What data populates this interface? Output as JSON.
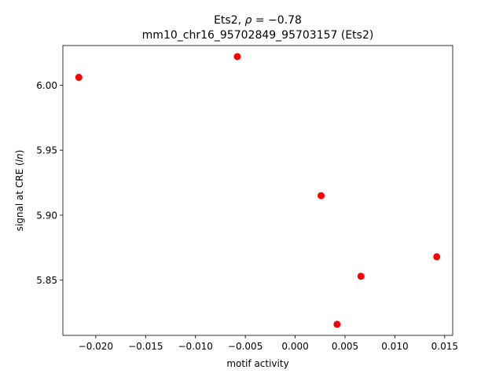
{
  "chart_data": {
    "type": "scatter",
    "title_line1_text": "Ets2, ",
    "title_line1_symbol": "ρ",
    "title_line1_value": " = −0.78",
    "title_line2": "mm10_chr16_95702849_95703157 (Ets2)",
    "xlabel": "motif activity",
    "ylabel_prefix": "signal at CRE (",
    "ylabel_symbol": "ln",
    "ylabel_suffix": ")",
    "xlim": [
      -0.0233,
      0.0158
    ],
    "ylim": [
      5.8075,
      6.0305
    ],
    "xticks": [
      -0.02,
      -0.015,
      -0.01,
      -0.005,
      0.0,
      0.005,
      0.01,
      0.015
    ],
    "xtick_labels": [
      "−0.020",
      "−0.015",
      "−0.010",
      "−0.005",
      "0.000",
      "0.005",
      "0.010",
      "0.015"
    ],
    "yticks": [
      5.85,
      5.9,
      5.95,
      6.0
    ],
    "ytick_labels": [
      "5.85",
      "5.90",
      "5.95",
      "6.00"
    ],
    "grid": false,
    "marker_color": "#ff0000",
    "points": [
      {
        "x": -0.0217,
        "y": 6.006
      },
      {
        "x": -0.0058,
        "y": 6.022
      },
      {
        "x": 0.0026,
        "y": 5.915
      },
      {
        "x": 0.0066,
        "y": 5.853
      },
      {
        "x": 0.0142,
        "y": 5.868
      },
      {
        "x": 0.0042,
        "y": 5.816
      }
    ]
  }
}
